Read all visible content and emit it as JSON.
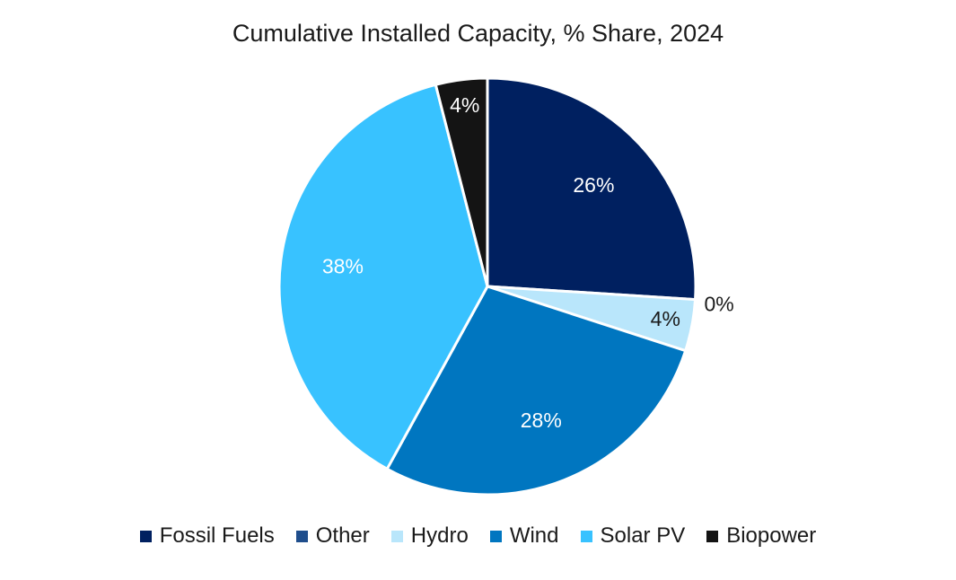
{
  "chart_data": {
    "type": "pie",
    "title": "Cumulative Installed Capacity, % Share, 2024",
    "slices": [
      {
        "name": "Fossil Fuels",
        "value": 26,
        "label": "26%",
        "color": "#002060",
        "label_color": "#ffffff"
      },
      {
        "name": "Other",
        "value": 0,
        "label": "0%",
        "color": "#1f4e8c",
        "label_color": "#1a1a1a"
      },
      {
        "name": "Hydro",
        "value": 4,
        "label": "4%",
        "color": "#b9e6fb",
        "label_color": "#1a1a1a"
      },
      {
        "name": "Wind",
        "value": 28,
        "label": "28%",
        "color": "#0076c0",
        "label_color": "#ffffff"
      },
      {
        "name": "Solar PV",
        "value": 38,
        "label": "38%",
        "color": "#38c2ff",
        "label_color": "#ffffff"
      },
      {
        "name": "Biopower",
        "value": 4,
        "label": "4%",
        "color": "#141414",
        "label_color": "#ffffff"
      }
    ],
    "legend_position": "bottom"
  }
}
